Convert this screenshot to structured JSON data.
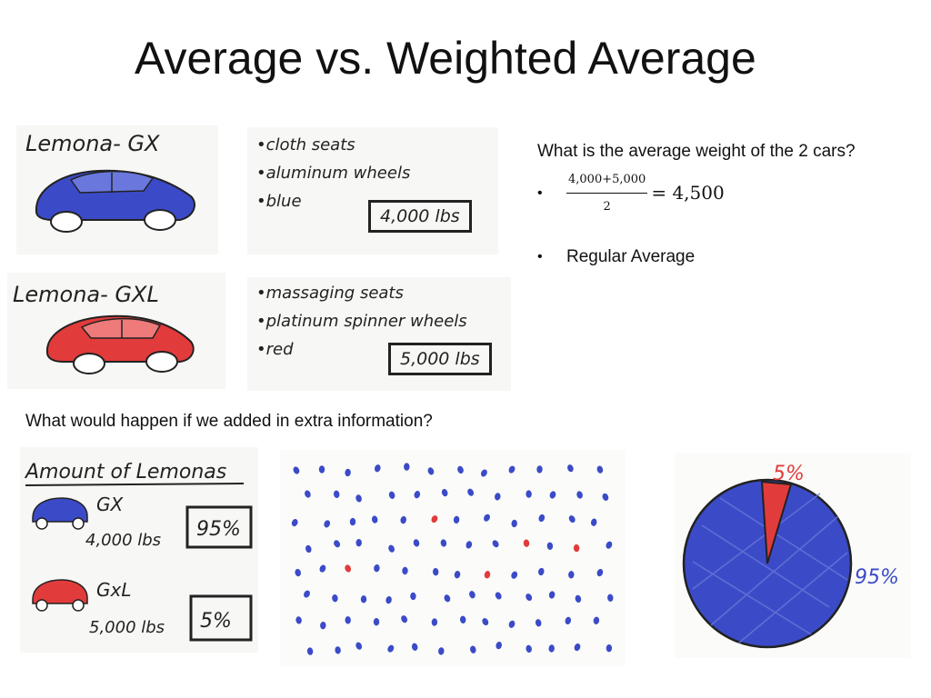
{
  "slide": {
    "title": "Average vs. Weighted Average"
  },
  "cars": [
    {
      "name": "Lemona- GX",
      "features": [
        "•cloth seats",
        "•aluminum wheels",
        "•blue"
      ],
      "weight": "4,000 lbs",
      "color": "#3b4bc8"
    },
    {
      "name": "Lemona- GXL",
      "features": [
        "•massaging seats",
        "•platinum spinner wheels",
        "•red"
      ],
      "weight": "5,000 lbs",
      "color": "#e23b3b"
    }
  ],
  "question": {
    "text": "What is the average weight of the 2 cars?",
    "formula_numerator": "4,000+5,000",
    "formula_denominator": "2",
    "formula_result": "= 4,500",
    "bullet2": "Regular Average"
  },
  "extra_question": "What would happen if we added in extra information?",
  "amount_panel": {
    "title": "Amount of Lemonas",
    "rows": [
      {
        "name": "GX",
        "weight": "4,000 lbs",
        "percent": "95%"
      },
      {
        "name": "GxL",
        "weight": "5,000 lbs",
        "percent": "5%"
      }
    ]
  },
  "pie_labels": {
    "small": "5%",
    "large": "95%"
  },
  "colors": {
    "blue": "#3b4bc8",
    "red": "#e23b3b"
  }
}
